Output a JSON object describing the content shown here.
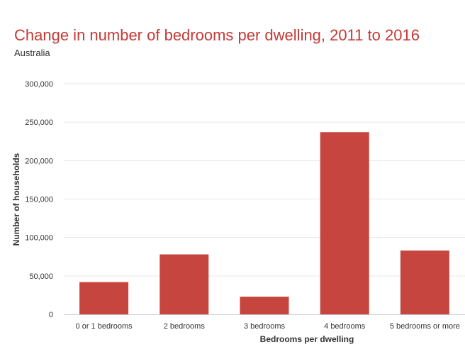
{
  "chart_data": {
    "type": "bar",
    "title": "Change in number of bedrooms per dwelling, 2011 to 2016",
    "subtitle": "Australia",
    "xlabel": "Bedrooms per dwelling",
    "ylabel": "Number of households",
    "categories": [
      "0 or 1 bedrooms",
      "2 bedrooms",
      "3 bedrooms",
      "4 bedrooms",
      "5 bedrooms or more"
    ],
    "values": [
      42000,
      78000,
      23000,
      237000,
      83000
    ],
    "ylim": [
      0,
      300000
    ],
    "yticks": [
      0,
      50000,
      100000,
      150000,
      200000,
      250000,
      300000
    ],
    "ytick_labels": [
      "0",
      "50,000",
      "100,000",
      "150,000",
      "200,000",
      "250,000",
      "300,000"
    ],
    "grid": true,
    "legend": "none",
    "bar_color": "#c6463f",
    "grid_color": "#e6e6e6",
    "title_color": "#c43a36"
  }
}
